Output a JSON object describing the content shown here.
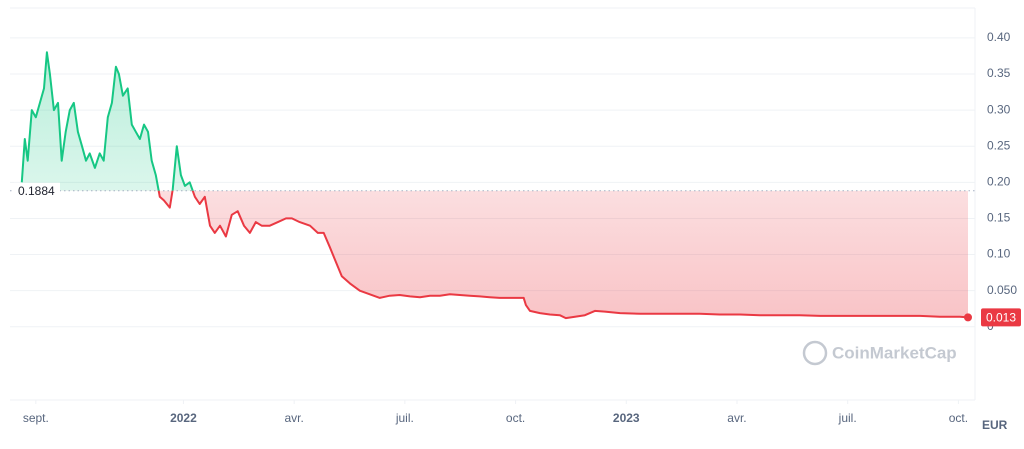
{
  "chart_data": {
    "type": "line",
    "x": [
      -0.38,
      -0.3,
      -0.22,
      -0.11,
      0,
      0.11,
      0.22,
      0.3,
      0.38,
      0.49,
      0.6,
      0.7,
      0.81,
      0.92,
      1.03,
      1.14,
      1.25,
      1.36,
      1.46,
      1.6,
      1.73,
      1.84,
      1.95,
      2.06,
      2.17,
      2.25,
      2.36,
      2.49,
      2.6,
      2.71,
      2.82,
      2.93,
      3.04,
      3.14,
      3.25,
      3.36,
      3.47,
      3.63,
      3.71,
      3.82,
      3.93,
      4.04,
      4.17,
      4.31,
      4.44,
      4.58,
      4.72,
      4.85,
      4.99,
      5.15,
      5.31,
      5.47,
      5.64,
      5.8,
      5.96,
      6.12,
      6.34,
      6.56,
      6.78,
      6.94,
      7.15,
      7.43,
      7.64,
      7.8,
      7.97,
      8.13,
      8.29,
      8.51,
      8.78,
      9.05,
      9.32,
      9.59,
      9.86,
      10.14,
      10.41,
      10.68,
      10.95,
      11.22,
      11.49,
      11.76,
      12.03,
      12.3,
      12.57,
      12.85,
      13.22,
      13.28,
      13.39,
      13.66,
      13.93,
      14.2,
      14.36,
      14.61,
      14.88,
      15.15,
      15.42,
      15.83,
      16.38,
      16.92,
      17.45,
      17.99,
      18.53,
      19.08,
      19.62,
      20.16,
      20.7,
      21.25,
      21.79,
      22.33,
      22.87,
      23.41,
      23.96,
      24.5,
      25.04,
      25.26
    ],
    "values": [
      0.2,
      0.26,
      0.23,
      0.3,
      0.29,
      0.31,
      0.33,
      0.38,
      0.35,
      0.3,
      0.31,
      0.23,
      0.27,
      0.3,
      0.31,
      0.27,
      0.25,
      0.23,
      0.24,
      0.22,
      0.24,
      0.23,
      0.29,
      0.31,
      0.36,
      0.35,
      0.32,
      0.33,
      0.28,
      0.27,
      0.26,
      0.28,
      0.27,
      0.23,
      0.21,
      0.18,
      0.175,
      0.165,
      0.19,
      0.25,
      0.21,
      0.195,
      0.2,
      0.18,
      0.17,
      0.18,
      0.14,
      0.13,
      0.14,
      0.125,
      0.155,
      0.16,
      0.14,
      0.13,
      0.145,
      0.14,
      0.14,
      0.145,
      0.15,
      0.15,
      0.145,
      0.14,
      0.13,
      0.13,
      0.11,
      0.09,
      0.07,
      0.06,
      0.05,
      0.045,
      0.04,
      0.043,
      0.044,
      0.042,
      0.041,
      0.043,
      0.043,
      0.045,
      0.044,
      0.043,
      0.042,
      0.041,
      0.04,
      0.04,
      0.04,
      0.03,
      0.022,
      0.019,
      0.017,
      0.016,
      0.012,
      0.014,
      0.016,
      0.022,
      0.021,
      0.019,
      0.018,
      0.018,
      0.018,
      0.018,
      0.017,
      0.017,
      0.016,
      0.016,
      0.016,
      0.015,
      0.015,
      0.015,
      0.015,
      0.015,
      0.015,
      0.014,
      0.014,
      0.013
    ],
    "up_color": "#16c784",
    "down_color": "#ea3943",
    "reference_value": 0.1884,
    "last_price": 0.013,
    "currency": "EUR",
    "watermark": "CoinMarketCap",
    "xlim": [
      -0.7,
      25.45
    ],
    "xticks": [
      {
        "value": 0,
        "label": "sept."
      },
      {
        "value": 4,
        "label": "2022"
      },
      {
        "value": 7,
        "label": "avr."
      },
      {
        "value": 10,
        "label": "juil."
      },
      {
        "value": 13,
        "label": "oct."
      },
      {
        "value": 16,
        "label": "2023"
      },
      {
        "value": 19,
        "label": "avr."
      },
      {
        "value": 22,
        "label": "juil."
      },
      {
        "value": 25,
        "label": "oct."
      }
    ],
    "ylim": [
      -0.1,
      0.44
    ],
    "yticks": [
      0,
      {
        "value": 0.05,
        "label": "0.050"
      },
      {
        "value": 0.1,
        "label": "0.10"
      },
      {
        "value": 0.15,
        "label": "0.15"
      },
      {
        "value": 0.2,
        "label": "0.20"
      },
      {
        "value": 0.25,
        "label": "0.25"
      },
      {
        "value": 0.3,
        "label": "0.30"
      },
      {
        "value": 0.35,
        "label": "0.35"
      },
      {
        "value": 0.4,
        "label": "0.40"
      }
    ],
    "grid": true
  }
}
